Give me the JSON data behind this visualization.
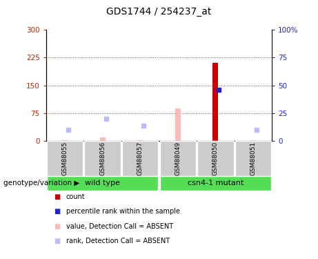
{
  "title": "GDS1744 / 254237_at",
  "samples": [
    "GSM88055",
    "GSM88056",
    "GSM88057",
    "GSM88049",
    "GSM88050",
    "GSM88051"
  ],
  "groups": [
    "wild type",
    "wild type",
    "wild type",
    "csn4-1 mutant",
    "csn4-1 mutant",
    "csn4-1 mutant"
  ],
  "count_values": [
    null,
    null,
    null,
    null,
    210,
    null
  ],
  "rank_values": [
    null,
    null,
    null,
    null,
    46,
    null
  ],
  "absent_value": [
    3,
    10,
    3,
    88,
    null,
    3
  ],
  "absent_rank": [
    10,
    20,
    14,
    null,
    null,
    10
  ],
  "ylim_left": [
    0,
    300
  ],
  "ylim_right": [
    0,
    100
  ],
  "yticks_left": [
    0,
    75,
    150,
    225,
    300
  ],
  "yticks_right": [
    0,
    25,
    50,
    75,
    100
  ],
  "ytick_labels_left": [
    "0",
    "75",
    "150",
    "225",
    "300"
  ],
  "ytick_labels_right": [
    "0",
    "25",
    "50",
    "75",
    "100%"
  ],
  "bar_width": 0.15,
  "count_color": "#cc0000",
  "rank_color": "#2222cc",
  "absent_value_color": "#ffbbbb",
  "absent_rank_color": "#bbbbff",
  "sample_bg_color": "#cccccc",
  "wt_group_color": "#55dd55",
  "mutant_group_color": "#55dd55",
  "dotted_line_color": "#555555",
  "plot_bg": "#ffffff",
  "outer_bg": "#ffffff",
  "title_fontsize": 10,
  "axis_fontsize": 8,
  "tick_fontsize": 7.5,
  "sample_fontsize": 6.5,
  "group_fontsize": 8,
  "legend_fontsize": 7,
  "label_fontsize": 7.5
}
